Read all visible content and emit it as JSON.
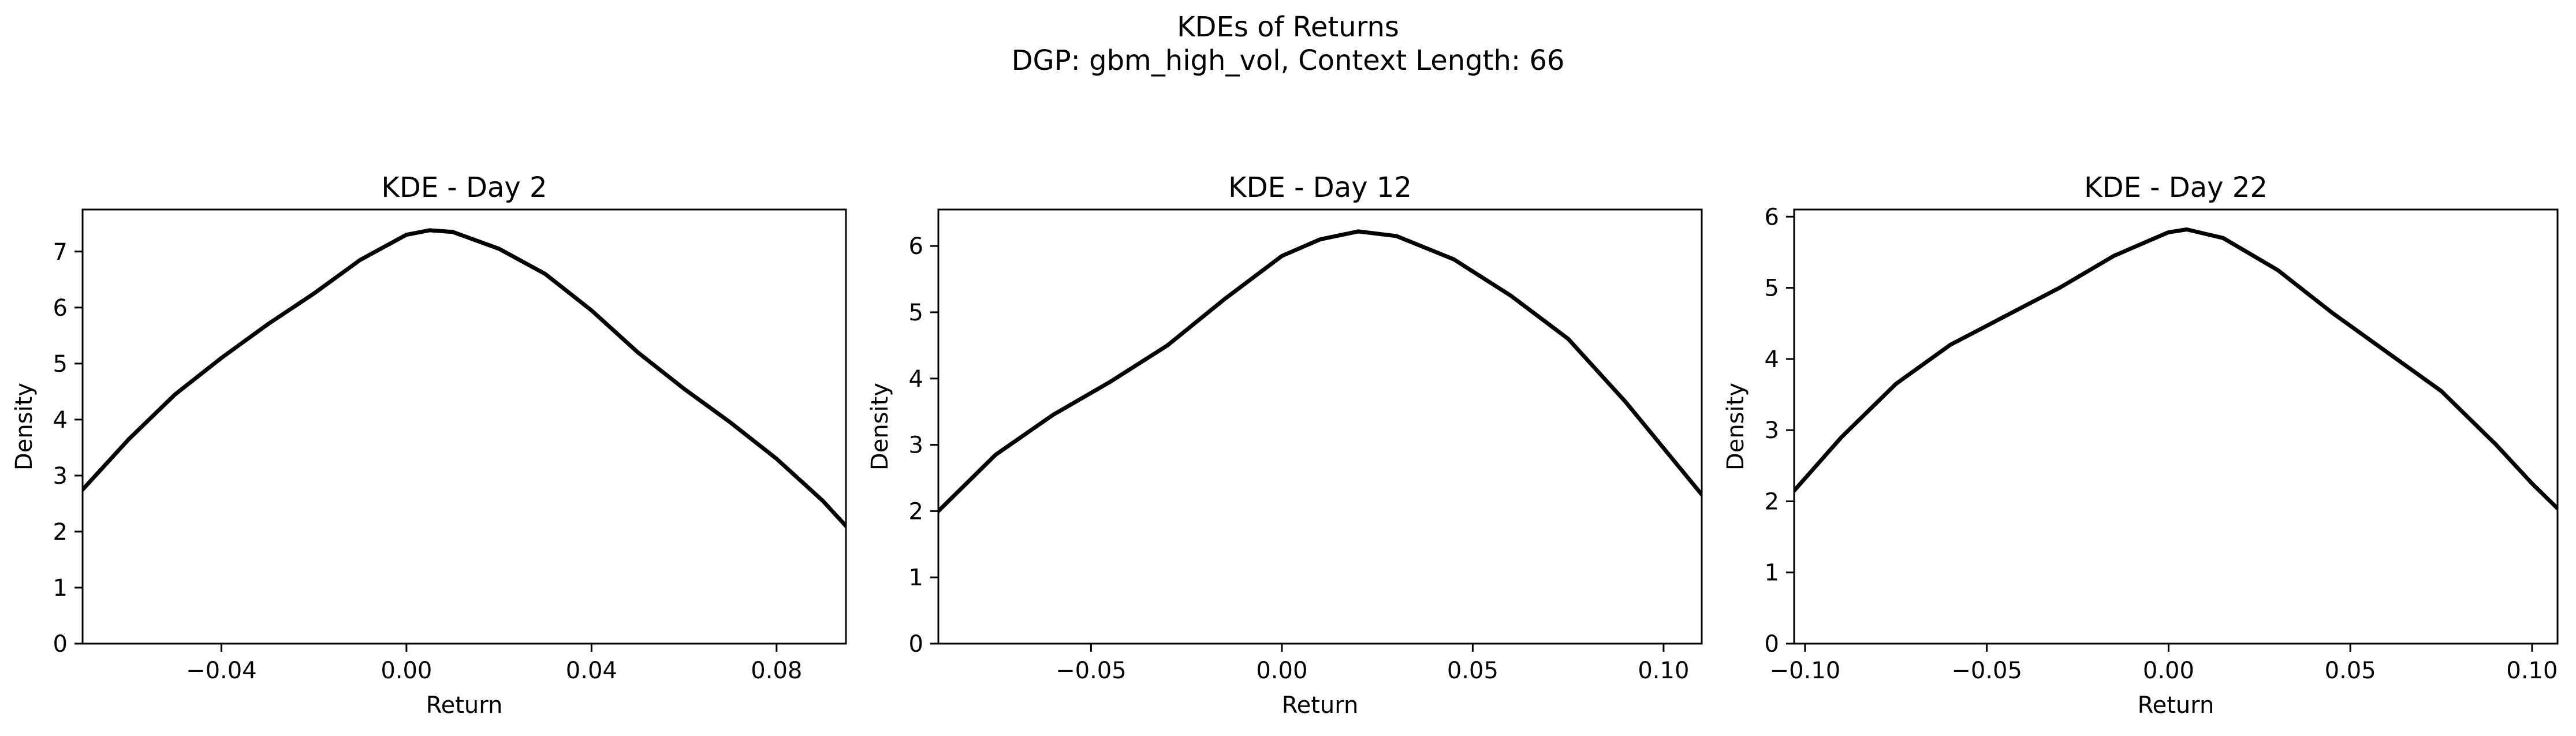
{
  "figure": {
    "title_line1": "KDEs of Returns",
    "title_line2": "DGP: gbm_high_vol, Context Length: 66"
  },
  "chart_data": [
    {
      "type": "line",
      "title": "KDE - Day 2",
      "xlabel": "Return",
      "ylabel": "Density",
      "xlim": [
        -0.07,
        0.095
      ],
      "ylim": [
        0,
        7.75
      ],
      "xticks": [
        -0.04,
        0.0,
        0.04,
        0.08
      ],
      "xtick_labels": [
        "−0.04",
        "0.00",
        "0.04",
        "0.08"
      ],
      "yticks": [
        0,
        1,
        2,
        3,
        4,
        5,
        6,
        7
      ],
      "ytick_labels": [
        "0",
        "1",
        "2",
        "3",
        "4",
        "5",
        "6",
        "7"
      ],
      "grid": false,
      "series_color": "#000000",
      "x": [
        -0.07,
        -0.06,
        -0.05,
        -0.04,
        -0.03,
        -0.02,
        -0.01,
        0.0,
        0.005,
        0.01,
        0.02,
        0.03,
        0.04,
        0.05,
        0.06,
        0.07,
        0.08,
        0.09,
        0.095
      ],
      "y": [
        2.75,
        3.65,
        4.45,
        5.1,
        5.7,
        6.25,
        6.85,
        7.3,
        7.38,
        7.35,
        7.05,
        6.6,
        5.95,
        5.2,
        4.55,
        3.95,
        3.3,
        2.55,
        2.1
      ]
    },
    {
      "type": "line",
      "title": "KDE - Day 12",
      "xlabel": "Return",
      "ylabel": "Density",
      "xlim": [
        -0.09,
        0.11
      ],
      "ylim": [
        0,
        6.55
      ],
      "xticks": [
        -0.05,
        0.0,
        0.05,
        0.1
      ],
      "xtick_labels": [
        "−0.05",
        "0.00",
        "0.05",
        "0.10"
      ],
      "yticks": [
        0,
        1,
        2,
        3,
        4,
        5,
        6
      ],
      "ytick_labels": [
        "0",
        "1",
        "2",
        "3",
        "4",
        "5",
        "6"
      ],
      "grid": false,
      "series_color": "#000000",
      "x": [
        -0.09,
        -0.075,
        -0.06,
        -0.045,
        -0.03,
        -0.015,
        0.0,
        0.01,
        0.02,
        0.03,
        0.045,
        0.06,
        0.075,
        0.09,
        0.1,
        0.11
      ],
      "y": [
        2.0,
        2.85,
        3.45,
        3.95,
        4.5,
        5.2,
        5.85,
        6.1,
        6.22,
        6.15,
        5.8,
        5.25,
        4.6,
        3.65,
        2.95,
        2.25
      ]
    },
    {
      "type": "line",
      "title": "KDE - Day 22",
      "xlabel": "Return",
      "ylabel": "Density",
      "xlim": [
        -0.103,
        0.107
      ],
      "ylim": [
        0,
        6.1
      ],
      "xticks": [
        -0.1,
        -0.05,
        0.0,
        0.05,
        0.1
      ],
      "xtick_labels": [
        "−0.10",
        "−0.05",
        "0.00",
        "0.05",
        "0.10"
      ],
      "yticks": [
        0,
        1,
        2,
        3,
        4,
        5,
        6
      ],
      "ytick_labels": [
        "0",
        "1",
        "2",
        "3",
        "4",
        "5",
        "6"
      ],
      "grid": false,
      "series_color": "#000000",
      "x": [
        -0.103,
        -0.09,
        -0.075,
        -0.06,
        -0.045,
        -0.03,
        -0.015,
        0.0,
        0.005,
        0.015,
        0.03,
        0.045,
        0.06,
        0.075,
        0.09,
        0.1,
        0.107
      ],
      "y": [
        2.15,
        2.9,
        3.65,
        4.2,
        4.6,
        5.0,
        5.45,
        5.78,
        5.82,
        5.7,
        5.25,
        4.65,
        4.1,
        3.55,
        2.8,
        2.25,
        1.9
      ]
    }
  ]
}
